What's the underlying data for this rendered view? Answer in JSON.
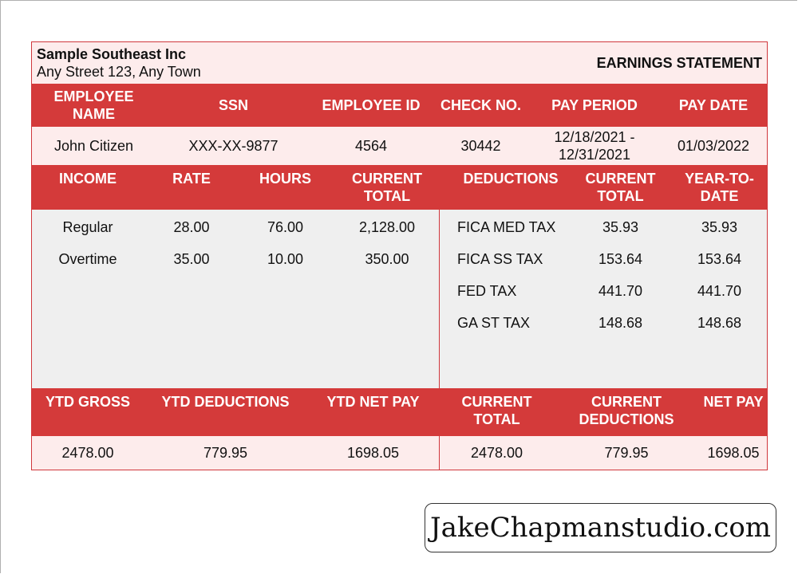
{
  "company": {
    "name": "Sample Southeast Inc",
    "address": "Any Street 123, Any Town",
    "statement_title": "EARNINGS STATEMENT"
  },
  "employee_header": {
    "name": "EMPLOYEE NAME",
    "ssn": "SSN",
    "employee_id": "EMPLOYEE ID",
    "check_no": "CHECK NO.",
    "pay_period": "PAY PERIOD",
    "pay_date": "PAY DATE"
  },
  "employee": {
    "name": "John Citizen",
    "ssn": "XXX-XX-9877",
    "employee_id": "4564",
    "check_no": "30442",
    "pay_period": "12/18/2021 - 12/31/2021",
    "pay_date": "01/03/2022"
  },
  "income_header": {
    "income": "INCOME",
    "rate": "RATE",
    "hours": "HOURS",
    "current_total": "CURRENT TOTAL",
    "deductions": "DEDUCTIONS",
    "ded_current_total": "CURRENT TOTAL",
    "year_to_date": "YEAR-TO-DATE"
  },
  "income_rows": [
    {
      "income": "Regular",
      "rate": "28.00",
      "hours": "76.00",
      "current_total": "2,128.00"
    },
    {
      "income": "Overtime",
      "rate": "35.00",
      "hours": "10.00",
      "current_total": "350.00"
    }
  ],
  "deduction_rows": [
    {
      "name": "FICA MED TAX",
      "current": "35.93",
      "ytd": "35.93"
    },
    {
      "name": "FICA SS TAX",
      "current": "153.64",
      "ytd": "153.64"
    },
    {
      "name": "FED TAX",
      "current": "441.70",
      "ytd": "441.70"
    },
    {
      "name": "GA ST TAX",
      "current": "148.68",
      "ytd": "148.68"
    }
  ],
  "summary_header": {
    "ytd_gross": "YTD GROSS",
    "ytd_deductions": "YTD DEDUCTIONS",
    "ytd_net_pay": "YTD NET PAY",
    "current_total": "CURRENT TOTAL",
    "current_deductions": "CURRENT DEDUCTIONS",
    "net_pay": "NET PAY"
  },
  "summary": {
    "ytd_gross": "2478.00",
    "ytd_deductions": "779.95",
    "ytd_net_pay": "1698.05",
    "current_total": "2478.00",
    "current_deductions": "779.95",
    "net_pay": "1698.05"
  },
  "watermark": "JakeChapmanstudio.com",
  "colors": {
    "header_red": "#d43a3a",
    "pink_band": "#fdecec",
    "body_grey": "#efefef"
  }
}
